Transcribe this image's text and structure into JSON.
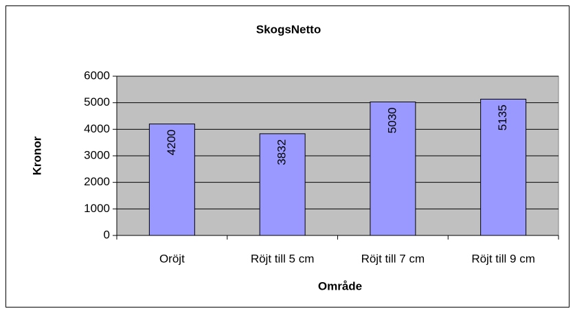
{
  "chart_data": {
    "type": "bar",
    "title": "SkogsNetto",
    "x_label": "Område",
    "y_label": "Kronor",
    "categories": [
      "Oröjt",
      "Röjt till 5 cm",
      "Röjt till 7 cm",
      "Röjt till 9 cm"
    ],
    "values": [
      4200,
      3832,
      5030,
      5135
    ],
    "color": "#9999ff",
    "ylim": [
      0,
      6000
    ],
    "yticks": [
      0,
      1000,
      2000,
      3000,
      4000,
      5000,
      6000
    ],
    "grid": true
  }
}
